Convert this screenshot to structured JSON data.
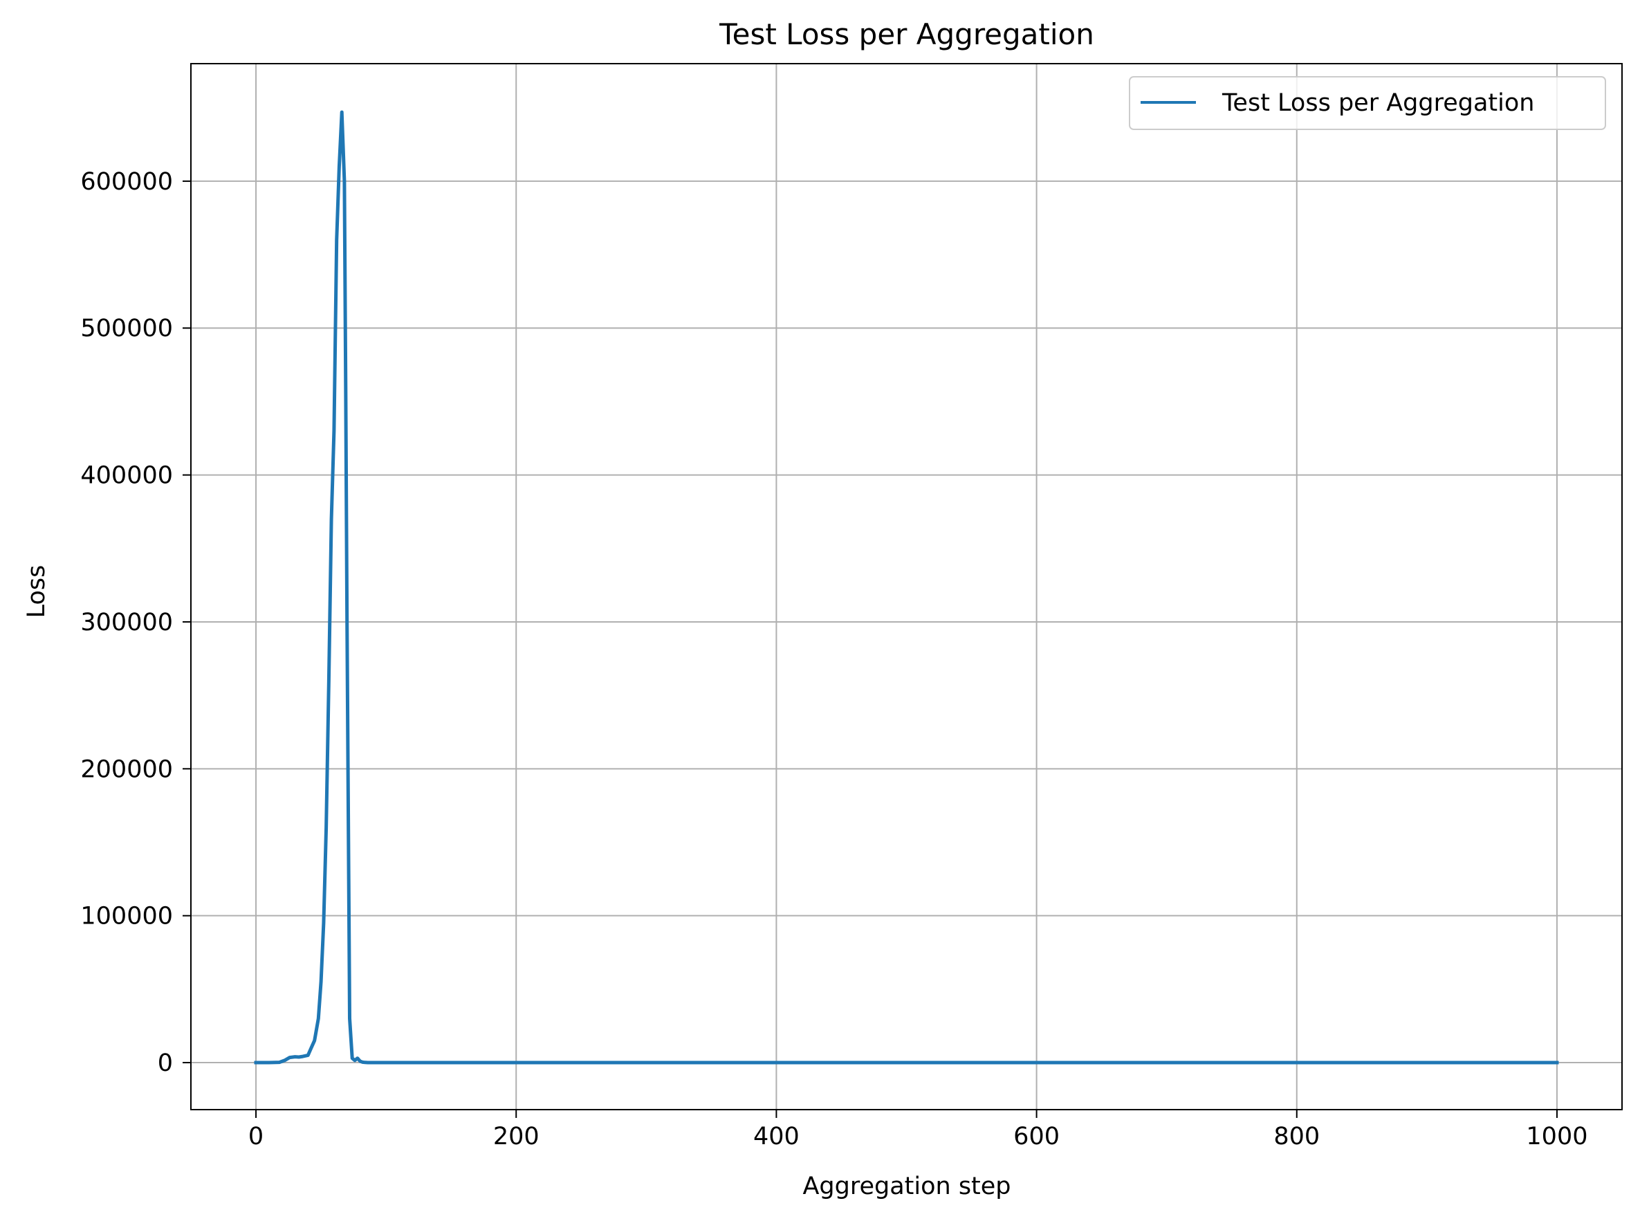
{
  "chart_data": {
    "type": "line",
    "title": "Test Loss per Aggregation",
    "xlabel": "Aggregation step",
    "ylabel": "Loss",
    "xlim": [
      -50,
      1050
    ],
    "ylim": [
      -32000,
      680000
    ],
    "xticks": [
      0,
      200,
      400,
      600,
      800,
      1000
    ],
    "xtick_labels": [
      "0",
      "200",
      "400",
      "600",
      "800",
      "1000"
    ],
    "yticks": [
      0,
      100000,
      200000,
      300000,
      400000,
      500000,
      600000
    ],
    "ytick_labels": [
      "0",
      "100000",
      "200000",
      "300000",
      "400000",
      "500000",
      "600000"
    ],
    "grid": true,
    "legend_position": "upper right",
    "colors": {
      "series": "#1f77b4",
      "grid": "#b0b0b0",
      "axes": "#000000"
    },
    "series": [
      {
        "name": "Test Loss per Aggregation",
        "x": [
          0,
          10,
          18,
          22,
          26,
          30,
          33,
          36,
          40,
          42,
          45,
          48,
          50,
          52,
          54,
          56,
          58,
          60,
          62,
          64,
          66,
          68,
          69,
          70,
          72,
          74,
          76,
          78,
          80,
          82,
          84,
          86,
          90,
          100,
          200,
          400,
          600,
          800,
          1000
        ],
        "y": [
          0,
          0,
          200,
          1500,
          3500,
          4000,
          3800,
          4200,
          5000,
          9000,
          15000,
          30000,
          55000,
          95000,
          160000,
          260000,
          370000,
          430000,
          560000,
          610000,
          647000,
          600000,
          460000,
          300000,
          30000,
          3000,
          1500,
          3000,
          1000,
          300,
          100,
          0,
          0,
          0,
          0,
          0,
          0,
          0,
          0
        ]
      }
    ]
  }
}
